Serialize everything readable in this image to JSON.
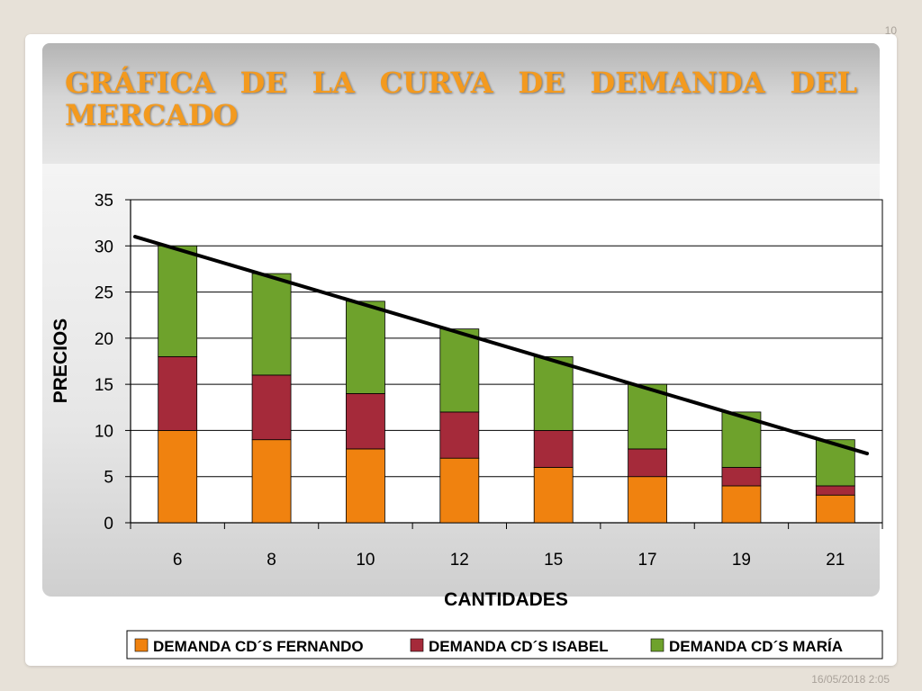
{
  "slide": {
    "number": "10",
    "title": "GRÁFICA DE LA CURVA DE DEMANDA DEL MERCADO",
    "date": "16/05/2018 2:05"
  },
  "chart_data": {
    "type": "bar",
    "stacked": true,
    "categories": [
      "6",
      "8",
      "10",
      "12",
      "15",
      "17",
      "19",
      "21"
    ],
    "series": [
      {
        "name": "DEMANDA CD´S FERNANDO",
        "values": [
          10,
          9,
          8,
          7,
          6,
          5,
          4,
          3
        ],
        "color": "#f0820f"
      },
      {
        "name": "DEMANDA CD´S ISABEL",
        "values": [
          8,
          7,
          6,
          5,
          4,
          3,
          2,
          1
        ],
        "color": "#a52a3a"
      },
      {
        "name": "DEMANDA CD´S MARÍA",
        "values": [
          12,
          11,
          10,
          9,
          8,
          7,
          6,
          5
        ],
        "color": "#6ea22c"
      }
    ],
    "trend_line": {
      "start": 31,
      "end": 7.5,
      "color": "#000000"
    },
    "xlabel": "CANTIDADES",
    "ylabel": "PRECIOS",
    "ylim": [
      0,
      35
    ],
    "yticks": [
      0,
      5,
      10,
      15,
      20,
      25,
      30,
      35
    ],
    "grid": true,
    "legend_position": "bottom"
  }
}
